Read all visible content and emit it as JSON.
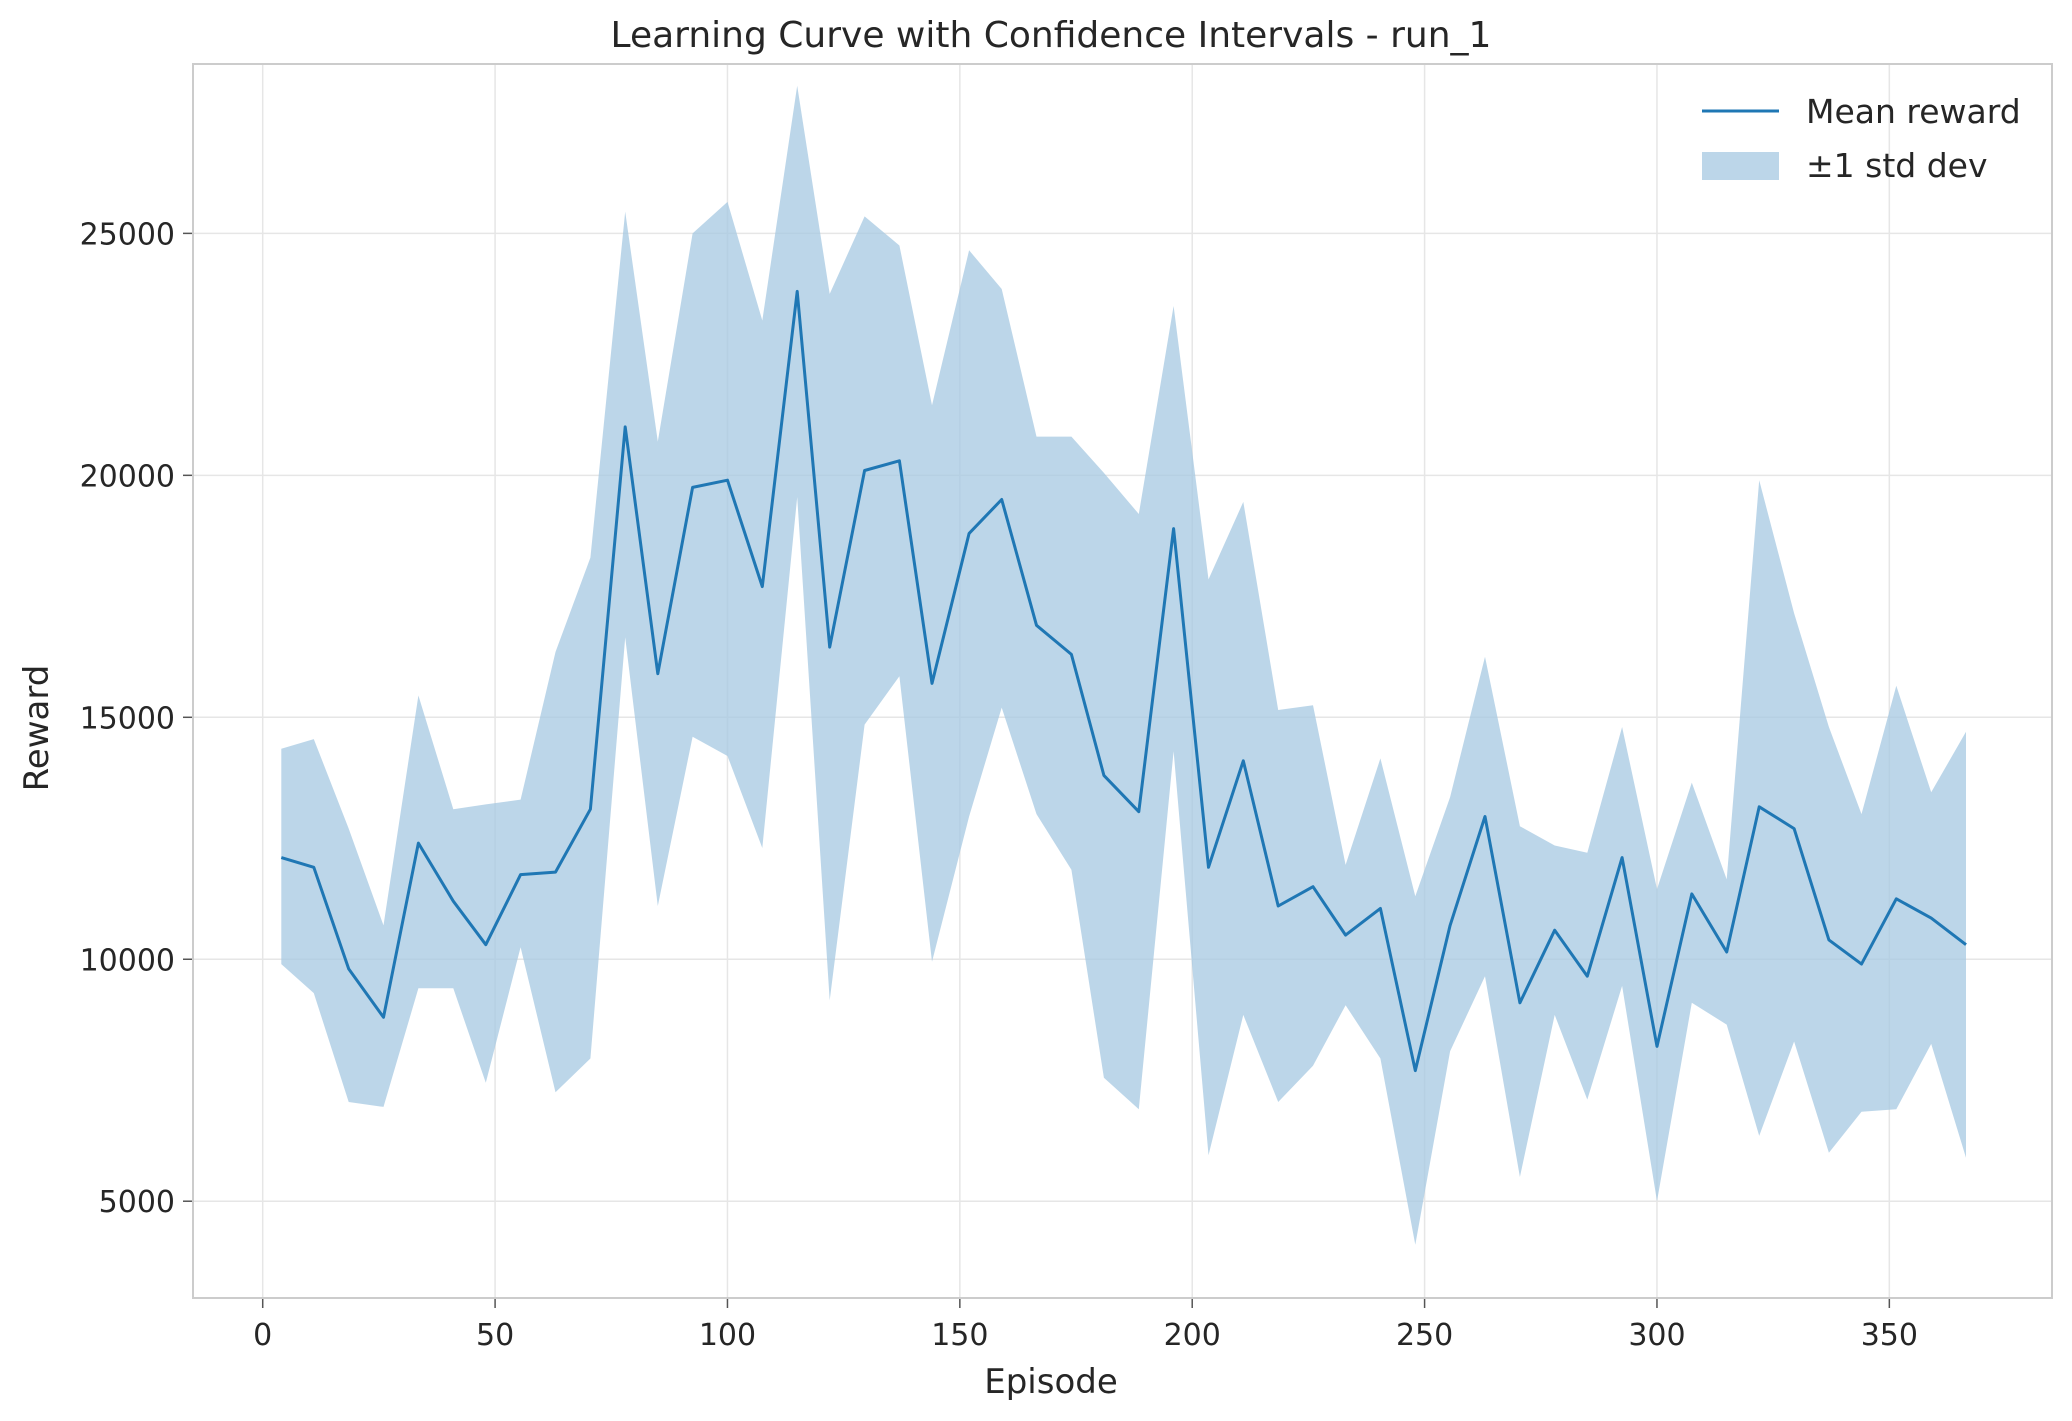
{
  "chart_data": {
    "type": "line",
    "title": "Learning Curve with Confidence Intervals - run_1",
    "xlabel": "Episode",
    "ylabel": "Reward",
    "xlim": [
      -15,
      385
    ],
    "ylim": [
      3000,
      28500
    ],
    "xticks": [
      0,
      50,
      100,
      150,
      200,
      250,
      300,
      350
    ],
    "yticks": [
      5000,
      10000,
      15000,
      20000,
      25000
    ],
    "grid": true,
    "legend_position": "top-right",
    "x": [
      4,
      11,
      18.5,
      26,
      33.5,
      41,
      48,
      55.5,
      63,
      70.5,
      78,
      85,
      92.5,
      100,
      107.5,
      115,
      122,
      129.5,
      137,
      144,
      152,
      159,
      166.5,
      174,
      181,
      188.5,
      196,
      203.5,
      211,
      218.5,
      226,
      233,
      240.5,
      248,
      255.5,
      263,
      270.5,
      278,
      285,
      292.5,
      300,
      307.5,
      315,
      322,
      329.5,
      337,
      344,
      351.5,
      359,
      366.5
    ],
    "series": [
      {
        "name": "Mean reward",
        "color": "#1f77b4",
        "values": [
          12100,
          11900,
          9800,
          8800,
          12400,
          11200,
          10300,
          11750,
          11800,
          13100,
          21000,
          15900,
          19750,
          19900,
          17700,
          23800,
          16450,
          20100,
          20300,
          15700,
          18800,
          19500,
          16900,
          16300,
          13800,
          13050,
          18900,
          11900,
          14100,
          11100,
          11500,
          10500,
          11050,
          7700,
          10700,
          12950,
          9100,
          10600,
          9650,
          12100,
          8200,
          11350,
          10150,
          13150,
          12700,
          10400,
          9900,
          11250,
          10850,
          10300
        ]
      },
      {
        "name": "±1 std dev",
        "color": "#a6c8e2",
        "upper": [
          14350,
          14550,
          12700,
          10700,
          15450,
          13100,
          13200,
          13300,
          16350,
          18300,
          25450,
          20700,
          25000,
          25650,
          23200,
          28050,
          23750,
          25350,
          24750,
          21450,
          24650,
          23850,
          20800,
          20800,
          20050,
          19200,
          23500,
          17850,
          19450,
          15150,
          15250,
          11950,
          14150,
          11300,
          13350,
          16250,
          12750,
          12350,
          12200,
          14800,
          11450,
          13650,
          11650,
          19900,
          17150,
          14800,
          13000,
          15650,
          13450,
          14700
        ],
        "lower": [
          9900,
          9300,
          7050,
          6950,
          9400,
          9400,
          7450,
          10250,
          7250,
          7950,
          16650,
          11100,
          14600,
          14200,
          12300,
          19550,
          9150,
          14850,
          15850,
          9950,
          12950,
          15200,
          13000,
          11850,
          7550,
          6900,
          14300,
          5950,
          8850,
          7050,
          7800,
          9050,
          7950,
          4100,
          8100,
          9650,
          5500,
          8850,
          7100,
          9450,
          5000,
          9100,
          8650,
          6350,
          8300,
          6000,
          6850,
          6900,
          8250,
          5900
        ]
      }
    ]
  }
}
